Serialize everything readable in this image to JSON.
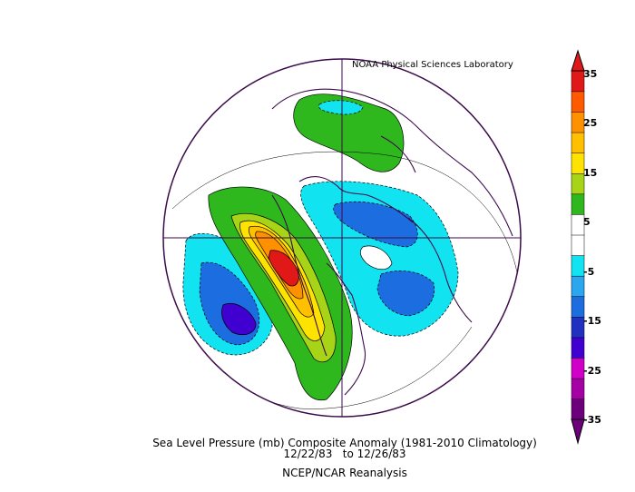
{
  "credit": "NOAA Physical Sciences Laboratory",
  "caption": {
    "line1": "Sea Level Pressure (mb) Composite Anomaly (1981-2010 Climatology)",
    "line2": "12/22/83   to 12/26/83",
    "line3": "NCEP/NCAR Reanalysis"
  },
  "colorbar": {
    "labels": [
      "35",
      "25",
      "15",
      "5",
      "-5",
      "-15",
      "-25",
      "-35"
    ],
    "colors": [
      "#6b007a",
      "#a400a4",
      "#d000c8",
      "#4000d0",
      "#2030c0",
      "#1c6ee0",
      "#2aa7ee",
      "#11e3f0",
      "#ffffff",
      "#ffffff",
      "#2eb81e",
      "#a8d418",
      "#ffe300",
      "#ffc000",
      "#ff9000",
      "#ff5a00",
      "#e01818"
    ]
  },
  "map": {
    "projection": "north-polar-stereographic",
    "variable": "sea-level-pressure-anomaly"
  }
}
